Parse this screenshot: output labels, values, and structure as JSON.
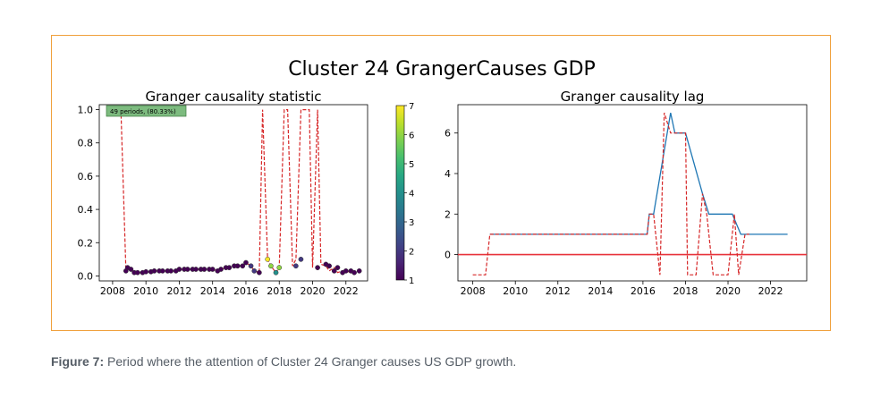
{
  "figure_title": "Cluster 24 GrangerCauses GDP",
  "caption": {
    "label": "Figure 7:",
    "text": " Period where the attention of Cluster 24 Granger causes US GDP growth."
  },
  "colors": {
    "frame": "#f0a03c",
    "threshold": "#d62728",
    "lag_line": "#1f77b4",
    "zero_line": "#e8333b",
    "annotation_bg": "#7dbb7f"
  },
  "chart_data": [
    {
      "type": "scatter",
      "title": "Granger causality statistic",
      "xlabel": "",
      "ylabel": "",
      "xlim": [
        2007.2,
        2023.3
      ],
      "ylim": [
        -0.03,
        1.03
      ],
      "xticks": [
        2008,
        2010,
        2012,
        2014,
        2016,
        2018,
        2020,
        2022
      ],
      "yticks": [
        0.0,
        0.2,
        0.4,
        0.6,
        0.8,
        1.0
      ],
      "ytick_labels": [
        "0.0",
        "0.2",
        "0.4",
        "0.6",
        "0.8",
        "1.0"
      ],
      "annotation": "49 periods, (80.33%)",
      "colorbar": {
        "min": 1,
        "max": 7,
        "ticks": [
          1,
          2,
          3,
          4,
          5,
          6,
          7
        ]
      },
      "series": [
        {
          "style": "dashed-red",
          "x": [
            2008.5,
            2008.8,
            2008.9,
            2009.1,
            2009.3,
            2009.5,
            2009.8,
            2010.0,
            2010.3,
            2010.5,
            2010.8,
            2011.0,
            2011.3,
            2011.5,
            2011.8,
            2012.0,
            2012.3,
            2012.5,
            2012.8,
            2013.0,
            2013.3,
            2013.5,
            2013.8,
            2014.0,
            2014.3,
            2014.5,
            2014.8,
            2015.0,
            2015.3,
            2015.5,
            2015.8,
            2016.0,
            2016.3,
            2016.5,
            2016.8,
            2017.0,
            2017.3,
            2017.5,
            2017.8,
            2018.0,
            2018.3,
            2018.5,
            2018.8,
            2019.0,
            2019.3,
            2019.5,
            2019.8,
            2020.0,
            2020.3,
            2020.5,
            2020.8,
            2021.0,
            2021.3,
            2021.5,
            2021.8,
            2022.0,
            2022.3,
            2022.5,
            2022.8
          ],
          "y": [
            1.0,
            0.03,
            0.05,
            0.04,
            0.02,
            0.02,
            0.02,
            0.025,
            0.025,
            0.03,
            0.03,
            0.03,
            0.03,
            0.03,
            0.03,
            0.04,
            0.04,
            0.04,
            0.04,
            0.04,
            0.04,
            0.04,
            0.04,
            0.04,
            0.03,
            0.04,
            0.05,
            0.05,
            0.06,
            0.06,
            0.06,
            0.08,
            0.06,
            0.03,
            0.02,
            1.0,
            0.1,
            0.06,
            0.02,
            0.05,
            1.0,
            1.0,
            0.06,
            0.1,
            1.0,
            1.0,
            1.0,
            0.05,
            1.0,
            0.07,
            0.06,
            0.03,
            0.05,
            0.02,
            0.03,
            0.03,
            0.02,
            0.03,
            0.03
          ]
        },
        {
          "style": "points",
          "x": [
            2008.8,
            2008.9,
            2009.1,
            2009.3,
            2009.5,
            2009.8,
            2010.0,
            2010.3,
            2010.5,
            2010.8,
            2011.0,
            2011.3,
            2011.5,
            2011.8,
            2012.0,
            2012.3,
            2012.5,
            2012.8,
            2013.0,
            2013.3,
            2013.5,
            2013.8,
            2014.0,
            2014.3,
            2014.5,
            2014.8,
            2015.0,
            2015.3,
            2015.5,
            2015.8,
            2016.0,
            2016.3,
            2016.5,
            2016.8,
            2017.3,
            2017.5,
            2017.8,
            2018.0,
            2019.0,
            2019.3,
            2020.3,
            2020.8,
            2021.0,
            2021.3,
            2021.5,
            2021.8,
            2022.0,
            2022.3,
            2022.5,
            2022.8
          ],
          "y": [
            0.03,
            0.05,
            0.04,
            0.02,
            0.02,
            0.02,
            0.025,
            0.025,
            0.03,
            0.03,
            0.03,
            0.03,
            0.03,
            0.03,
            0.04,
            0.04,
            0.04,
            0.04,
            0.04,
            0.04,
            0.04,
            0.04,
            0.04,
            0.03,
            0.04,
            0.05,
            0.05,
            0.06,
            0.06,
            0.06,
            0.08,
            0.06,
            0.03,
            0.02,
            0.1,
            0.06,
            0.02,
            0.05,
            0.06,
            0.1,
            0.05,
            0.07,
            0.06,
            0.03,
            0.05,
            0.02,
            0.03,
            0.03,
            0.02,
            0.03
          ],
          "lag": [
            1,
            1,
            1,
            1,
            1,
            1,
            1,
            1,
            1,
            1,
            1,
            1,
            1,
            1,
            1,
            1,
            1,
            1,
            1,
            1,
            1,
            1,
            1,
            1,
            1,
            1,
            1,
            1,
            1,
            1,
            1,
            2,
            2,
            1,
            7,
            6,
            4,
            6,
            2,
            2,
            1,
            1,
            1,
            1,
            1,
            1,
            1,
            1,
            1,
            1
          ]
        }
      ]
    },
    {
      "type": "line",
      "title": "Granger causality lag",
      "xlabel": "",
      "ylabel": "",
      "xlim": [
        2007.3,
        2023.7
      ],
      "ylim": [
        -1.3,
        7.4
      ],
      "xticks": [
        2008,
        2010,
        2012,
        2014,
        2016,
        2018,
        2020,
        2022
      ],
      "yticks": [
        0,
        2,
        4,
        6
      ],
      "series": [
        {
          "style": "solid-blue",
          "x": [
            2008.8,
            2016.2,
            2016.3,
            2016.5,
            2017.3,
            2017.5,
            2018.0,
            2018.8,
            2019.1,
            2020.2,
            2020.6,
            2020.9,
            2022.8
          ],
          "y": [
            1,
            1,
            2,
            2,
            7,
            6,
            6,
            3,
            2,
            2,
            1,
            1,
            1
          ]
        },
        {
          "style": "dashed-red",
          "x": [
            2008.0,
            2008.6,
            2008.8,
            2016.2,
            2016.3,
            2016.5,
            2016.8,
            2017.0,
            2017.3,
            2017.5,
            2018.0,
            2018.1,
            2018.3,
            2018.5,
            2018.8,
            2019.0,
            2019.3,
            2019.5,
            2019.8,
            2020.0,
            2020.3,
            2020.5,
            2020.8,
            2021.0
          ],
          "y": [
            -1,
            -1,
            1,
            1,
            2,
            2,
            -1,
            7,
            6,
            6,
            6,
            -1,
            -1,
            -1,
            3,
            2,
            -1,
            -1,
            -1,
            -1,
            2,
            -1,
            1,
            1
          ]
        },
        {
          "style": "zero-red",
          "x": [
            2007.3,
            2023.7
          ],
          "y": [
            0,
            0
          ]
        }
      ]
    }
  ]
}
